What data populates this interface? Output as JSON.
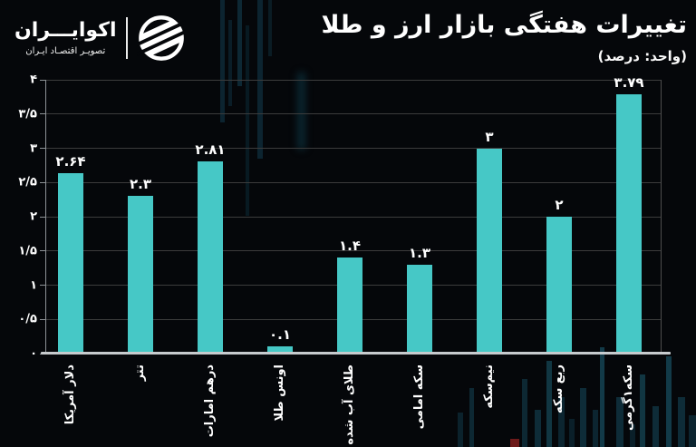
{
  "brand": {
    "name": "اکوایـــران",
    "tagline": "تصویـر اقتصـاد ایـران",
    "logo_icon": "ecoiran-globe-icon"
  },
  "header": {
    "title": "تغییرات هفتگی بازار ارز و طلا",
    "subtitle": "(واحد: درصد)"
  },
  "chart_data": {
    "type": "bar",
    "title": "تغییرات هفتگی بازار ارز و طلا",
    "unit_note": "(واحد: درصد)",
    "categories": [
      "دلار آمریکا",
      "تتر",
      "درهم امارات",
      "اونس طلا",
      "طلای آب شده",
      "سکه امامی",
      "نیم‌سکه",
      "ربع سکه",
      "سکه۱گرمی"
    ],
    "values": [
      2.64,
      2.3,
      2.81,
      0.1,
      1.4,
      1.3,
      3,
      2,
      3.79
    ],
    "value_labels": [
      "۲.۶۴",
      "۲.۳",
      "۲.۸۱",
      "۰.۱",
      "۱.۴",
      "۱.۳",
      "۳",
      "۲",
      "۳.۷۹"
    ],
    "yticks": [
      {
        "value": 0,
        "label": "۰"
      },
      {
        "value": 0.5,
        "label": "۰/۵"
      },
      {
        "value": 1,
        "label": "۱"
      },
      {
        "value": 1.5,
        "label": "۱/۵"
      },
      {
        "value": 2,
        "label": "۲"
      },
      {
        "value": 2.5,
        "label": "۲/۵"
      },
      {
        "value": 3,
        "label": "۳"
      },
      {
        "value": 3.5,
        "label": "۳/۵"
      },
      {
        "value": 4,
        "label": "۴"
      }
    ],
    "ylim": [
      0,
      4
    ],
    "grid": true,
    "legend": false,
    "xlabel_rotation_deg": -90,
    "colors": {
      "bar": "#46c8c6",
      "background": "#05070a",
      "gridline": "#3c3c3c",
      "axis_line": "#c7cbce",
      "spine": "#8d9296",
      "text": "#ffffff"
    }
  }
}
